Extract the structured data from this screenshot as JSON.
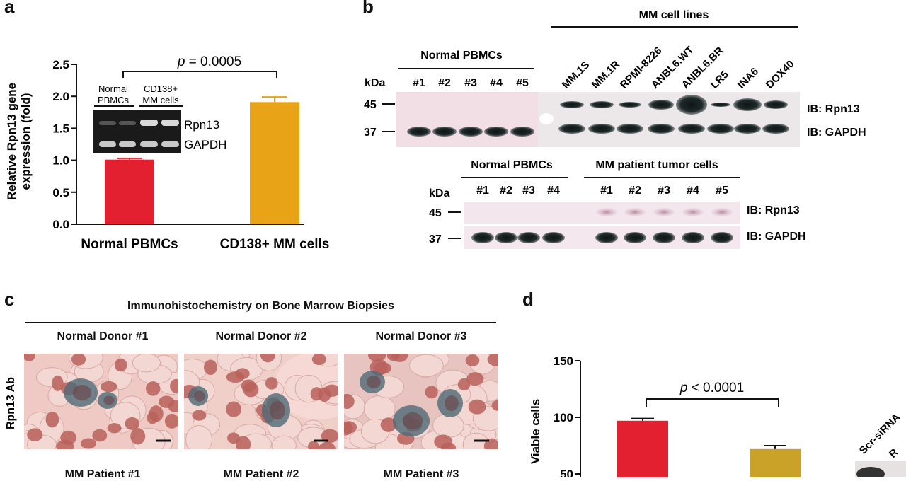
{
  "panels": {
    "a": {
      "label": "a",
      "chart_data": {
        "type": "bar",
        "categories": [
          "Normal PBMCs",
          "CD138+ MM cells"
        ],
        "values": [
          1.01,
          1.91
        ],
        "errors": [
          0.02,
          0.08
        ],
        "colors": [
          "#e3202f",
          "#e8a317"
        ],
        "ylabel": "Relative Rpn13 gene expression (fold)",
        "ylim": [
          0,
          2.5
        ],
        "yticks": [
          "0.0",
          "0.5",
          "1.0",
          "1.5",
          "2.0",
          "2.5"
        ],
        "annotation": "p = 0.0005",
        "p_symbol": "p",
        "p_value": "= 0.0005"
      },
      "ylabel_line1": "Relative Rpn13 gene",
      "ylabel_line2": "expression (fold)",
      "inset": {
        "group1_line1": "Normal",
        "group1_line2": "PBMCs",
        "group2_line1": "CD138+",
        "group2_line2": "MM cells",
        "band1": "Rpn13",
        "band2": "GAPDH"
      }
    },
    "b": {
      "label": "b",
      "top": {
        "group_mm": "MM cell lines",
        "group_pbmc": "Normal PBMCs",
        "kda": "kDa",
        "marker_45": "45",
        "marker_37": "37",
        "pbmc_lanes": [
          "#1",
          "#2",
          "#3",
          "#4",
          "#5"
        ],
        "mm_lanes": [
          "MM.1S",
          "MM.1R",
          "RPMI-8226",
          "ANBL6.WT",
          "ANBL6.BR",
          "LR5",
          "INA6",
          "DOX40"
        ],
        "ib1": "IB: Rpn13",
        "ib2": "IB: GAPDH"
      },
      "bottom": {
        "group_pbmc": "Normal PBMCs",
        "group_mm": "MM patient tumor cells",
        "kda": "kDa",
        "marker_45": "45",
        "marker_37": "37",
        "pbmc_lanes": [
          "#1",
          "#2",
          "#3",
          "#4"
        ],
        "mm_lanes": [
          "#1",
          "#2",
          "#3",
          "#4",
          "#5"
        ],
        "ib1": "IB: Rpn13",
        "ib2": "IB: GAPDH"
      }
    },
    "c": {
      "label": "c",
      "title": "Immunohistochemistry on Bone Marrow Biopsies",
      "row_label": "Rpn13 Ab",
      "columns": [
        "Normal Donor #1",
        "Normal Donor #2",
        "Normal Donor #3"
      ],
      "bottom_labels": [
        "MM Patient #1",
        "MM Patient #2",
        "MM Patient #3"
      ]
    },
    "d": {
      "label": "d",
      "chart_data": {
        "type": "bar",
        "categories": [
          "",
          ""
        ],
        "values": [
          97,
          72
        ],
        "errors": [
          2,
          3
        ],
        "colors": [
          "#e3202f",
          "#c9a227"
        ],
        "ylabel": "Viable cells",
        "yticks": [
          "50",
          "100",
          "150"
        ],
        "annotation": "p < 0.0001",
        "p_symbol": "p",
        "p_value": "< 0.0001"
      },
      "blot_labels": [
        "Scr-siRNA",
        "R"
      ]
    }
  }
}
